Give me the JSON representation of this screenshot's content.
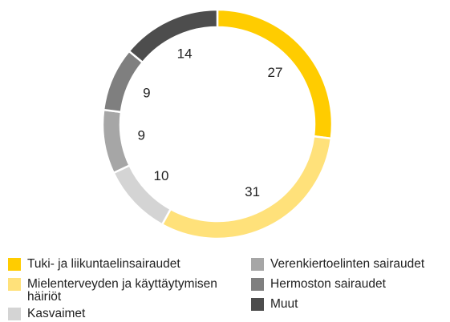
{
  "chart_data": {
    "type": "pie",
    "categories": [
      "Tuki- ja liikuntaelinsairaudet",
      "Mielenterveyden ja käyttäytymisen häiriöt",
      "Kasvaimet",
      "Verenkiertoelinten sairaudet",
      "Hermoston sairaudet",
      "Muut"
    ],
    "values": [
      27,
      31,
      10,
      9,
      9,
      14
    ],
    "colors": [
      "#ffcc00",
      "#ffe17a",
      "#d4d4d4",
      "#a6a6a6",
      "#7f7f7f",
      "#4d4d4d"
    ]
  }
}
